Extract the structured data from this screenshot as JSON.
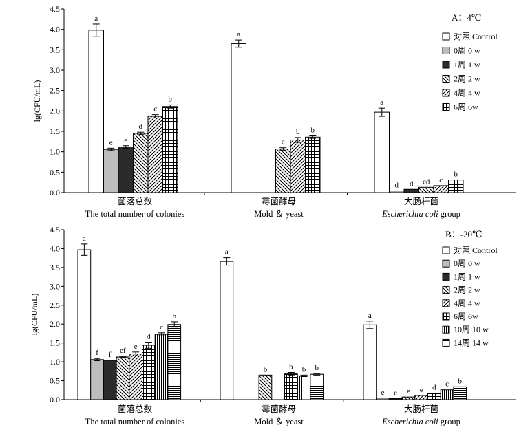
{
  "chart_data": [
    {
      "type": "bar",
      "title": "A：4℃",
      "ylabel": "lg(CFU/mL)",
      "ylim": [
        0,
        4.5
      ],
      "yticks": [
        "0.0",
        "0.5",
        "1.0",
        "1.5",
        "2.0",
        "2.5",
        "3.0",
        "3.5",
        "4.0",
        "4.5"
      ],
      "categories": [
        {
          "zh": "菌落总数",
          "en": "The total number of colonies",
          "en_italic": "",
          "en_rest": ""
        },
        {
          "zh": "霉菌酵母",
          "en": "Mold ＆ yeast",
          "en_italic": "",
          "en_rest": ""
        },
        {
          "zh": "大肠杆菌",
          "en": "",
          "en_italic": "Escherichia coli",
          "en_rest": " group"
        }
      ],
      "legend": [
        "对照 Control",
        "0周 0 w",
        "1周 1 w",
        "2周 2 w",
        "4周 4 w",
        "6周 6w"
      ],
      "series": [
        {
          "name": "对照 Control",
          "pattern": "white",
          "values": [
            3.98,
            3.65,
            1.97
          ],
          "errors": [
            0.15,
            0.09,
            0.1
          ],
          "labels": [
            "a",
            "a",
            "a"
          ]
        },
        {
          "name": "0周 0 w",
          "pattern": "gray",
          "values": [
            1.06,
            null,
            0.04
          ],
          "errors": [
            0.03,
            null,
            0.0
          ],
          "labels": [
            "e",
            "",
            "d"
          ]
        },
        {
          "name": "1周 1 w",
          "pattern": "black",
          "values": [
            1.12,
            null,
            0.08
          ],
          "errors": [
            0.03,
            null,
            0.0
          ],
          "labels": [
            "e",
            "",
            "d"
          ]
        },
        {
          "name": "2周 2 w",
          "pattern": "diag",
          "values": [
            1.45,
            1.07,
            0.13
          ],
          "errors": [
            0.03,
            0.03,
            0.0
          ],
          "labels": [
            "d",
            "c",
            "cd"
          ]
        },
        {
          "name": "4周 4 w",
          "pattern": "diag2",
          "values": [
            1.87,
            1.29,
            0.17
          ],
          "errors": [
            0.04,
            0.06,
            0.0
          ],
          "labels": [
            "c",
            "b",
            "c"
          ]
        },
        {
          "name": "6周 6w",
          "pattern": "grid",
          "values": [
            2.11,
            1.36,
            0.31
          ],
          "errors": [
            0.04,
            0.03,
            0.0
          ],
          "labels": [
            "b",
            "b",
            "b"
          ]
        }
      ]
    },
    {
      "type": "bar",
      "title": "B：-20℃",
      "ylabel": "lg(CFU/mL)",
      "ylim": [
        0,
        4.5
      ],
      "yticks": [
        "0.0",
        "0.5",
        "1.0",
        "1.5",
        "2.0",
        "2.5",
        "3.0",
        "3.5",
        "4.0",
        "4.5"
      ],
      "categories": [
        {
          "zh": "菌落总数",
          "en": "The total number of colonies",
          "en_italic": "",
          "en_rest": ""
        },
        {
          "zh": "霉菌酵母",
          "en": "Mold ＆ yeast",
          "en_italic": "",
          "en_rest": ""
        },
        {
          "zh": "大肠杆菌",
          "en": "",
          "en_italic": "Escherichia coli",
          "en_rest": " group"
        }
      ],
      "legend": [
        "对照 Control",
        "0周 0 w",
        "1周 1 w",
        "2周 2 w",
        "4周 4 w",
        "6周 6w",
        "10周 10 w",
        "14周 14 w"
      ],
      "series": [
        {
          "name": "对照 Control",
          "pattern": "white",
          "values": [
            3.97,
            3.66,
            1.98
          ],
          "errors": [
            0.15,
            0.1,
            0.1
          ],
          "labels": [
            "a",
            "a",
            "a"
          ]
        },
        {
          "name": "0周 0 w",
          "pattern": "gray",
          "values": [
            1.06,
            null,
            0.04
          ],
          "errors": [
            0.03,
            null,
            0.0
          ],
          "labels": [
            "f",
            "",
            "e"
          ]
        },
        {
          "name": "1周 1 w",
          "pattern": "black",
          "values": [
            1.04,
            null,
            0.03
          ],
          "errors": [
            0.0,
            null,
            0.0
          ],
          "labels": [
            "f",
            "",
            "e"
          ]
        },
        {
          "name": "2周 2 w",
          "pattern": "diag",
          "values": [
            1.13,
            0.65,
            0.07
          ],
          "errors": [
            0.02,
            0.0,
            0.0
          ],
          "labels": [
            "ef",
            "b",
            "e"
          ]
        },
        {
          "name": "4周 4 w",
          "pattern": "diag2",
          "values": [
            1.21,
            null,
            0.11
          ],
          "errors": [
            0.05,
            null,
            0.0
          ],
          "labels": [
            "e",
            "",
            "e"
          ]
        },
        {
          "name": "6周 6w",
          "pattern": "grid",
          "values": [
            1.44,
            0.68,
            0.17
          ],
          "errors": [
            0.08,
            0.04,
            0.0
          ],
          "labels": [
            "d",
            "b",
            "d"
          ]
        },
        {
          "name": "10周 10 w",
          "pattern": "vert",
          "values": [
            1.73,
            0.63,
            0.26
          ],
          "errors": [
            0.04,
            0.02,
            0.0
          ],
          "labels": [
            "c",
            "b",
            "c"
          ]
        },
        {
          "name": "14周 14 w",
          "pattern": "horiz",
          "values": [
            1.99,
            0.67,
            0.34
          ],
          "errors": [
            0.07,
            0.02,
            0.0
          ],
          "labels": [
            "b",
            "b",
            "b"
          ]
        }
      ]
    }
  ]
}
